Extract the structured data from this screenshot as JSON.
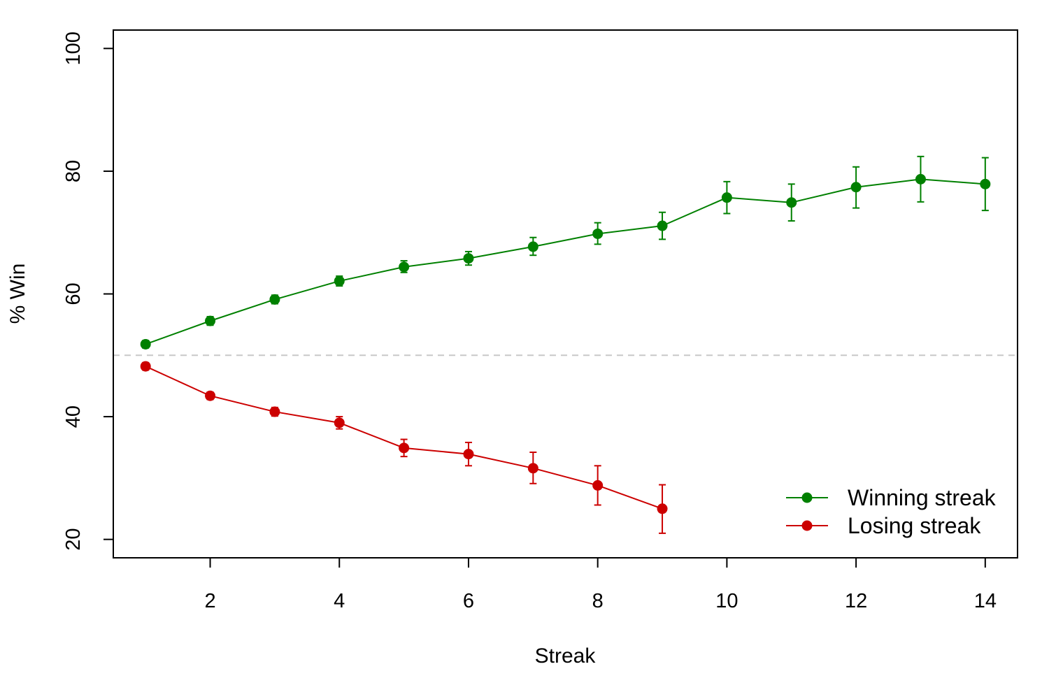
{
  "chart_data": {
    "type": "line",
    "title": "",
    "xlabel": "Streak",
    "ylabel": "% Win",
    "xlim": [
      0.5,
      14.5
    ],
    "ylim": [
      17,
      103
    ],
    "xticks": [
      2,
      4,
      6,
      8,
      10,
      12,
      14
    ],
    "yticks": [
      20,
      40,
      60,
      80,
      100
    ],
    "reference_line": {
      "y": 50,
      "style": "dashed",
      "color": "#c8c8c8"
    },
    "legend": {
      "position": "bottom-right"
    },
    "grid": false,
    "series": [
      {
        "name": "Winning streak",
        "color": "#008000",
        "x": [
          1,
          2,
          3,
          4,
          5,
          6,
          7,
          8,
          9,
          10,
          11,
          12,
          13,
          14
        ],
        "y": [
          51.8,
          55.6,
          59.1,
          62.1,
          64.4,
          65.8,
          67.7,
          69.8,
          71.1,
          75.7,
          74.9,
          77.4,
          78.7,
          77.9
        ],
        "err_low": [
          51.2,
          54.9,
          58.4,
          61.3,
          63.5,
          64.7,
          66.3,
          68.1,
          68.9,
          73.1,
          71.9,
          74.0,
          75.0,
          73.6
        ],
        "err_high": [
          52.4,
          56.3,
          59.8,
          62.9,
          65.4,
          66.9,
          69.2,
          71.6,
          73.3,
          78.3,
          77.9,
          80.7,
          82.4,
          82.2
        ]
      },
      {
        "name": "Losing streak",
        "color": "#cc0000",
        "x": [
          1,
          2,
          3,
          4,
          5,
          6,
          7,
          8,
          9
        ],
        "y": [
          48.2,
          43.4,
          40.8,
          39.0,
          34.9,
          33.9,
          31.6,
          28.8,
          25.0
        ],
        "err_low": [
          47.6,
          42.8,
          40.1,
          38.0,
          33.5,
          32.0,
          29.1,
          25.6,
          21.0
        ],
        "err_high": [
          48.8,
          44.0,
          41.5,
          40.0,
          36.3,
          35.8,
          34.2,
          32.0,
          28.9
        ]
      }
    ]
  }
}
